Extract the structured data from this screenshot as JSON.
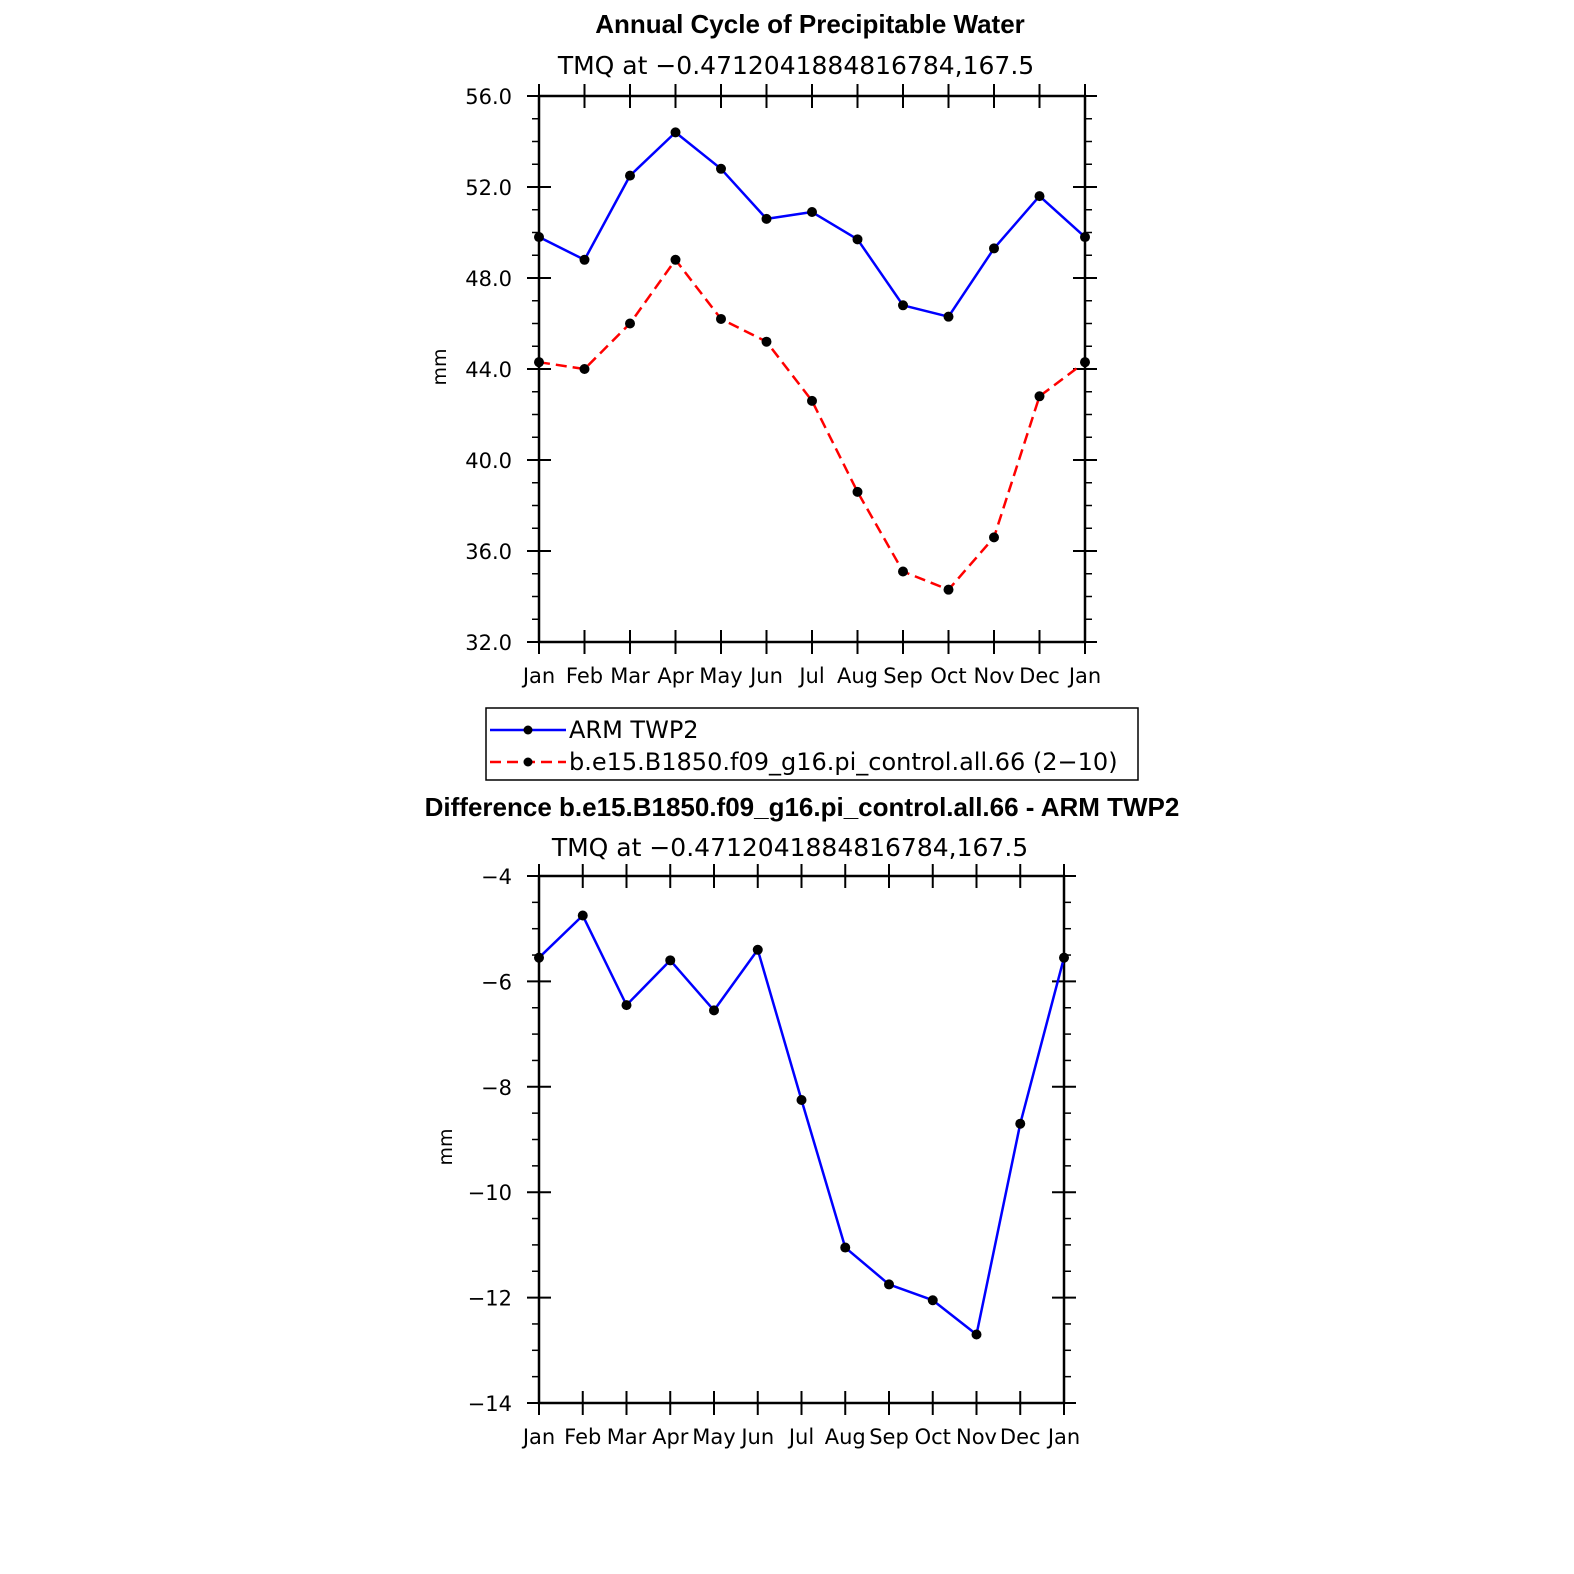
{
  "chart_data": [
    {
      "type": "line",
      "title": "Annual Cycle of Precipitable Water",
      "subtitle": "TMQ at −0.4712041884816784,167.5",
      "xlabel": "",
      "ylabel": "mm",
      "categories": [
        "Jan",
        "Feb",
        "Mar",
        "Apr",
        "May",
        "Jun",
        "Jul",
        "Aug",
        "Sep",
        "Oct",
        "Nov",
        "Dec",
        "Jan"
      ],
      "yticks": [
        "32.0",
        "36.0",
        "40.0",
        "44.0",
        "48.0",
        "52.0",
        "56.0"
      ],
      "ylim": [
        32,
        56
      ],
      "series": [
        {
          "name": "ARM TWP2",
          "color": "#0000ff",
          "dash": "solid",
          "values": [
            49.8,
            48.8,
            52.5,
            54.4,
            52.8,
            50.6,
            50.9,
            49.7,
            46.8,
            46.3,
            49.3,
            51.6,
            49.8
          ]
        },
        {
          "name": "b.e15.B1850.f09_g16.pi_control.all.66 (2−10)",
          "color": "#ff0000",
          "dash": "dashed",
          "values": [
            44.3,
            44.0,
            46.0,
            48.8,
            46.2,
            45.2,
            42.6,
            38.6,
            35.1,
            34.3,
            36.6,
            42.8,
            44.3
          ]
        }
      ],
      "legend": {
        "position": "bottom",
        "entries": [
          "ARM TWP2",
          "b.e15.B1850.f09_g16.pi_control.all.66 (2−10)"
        ]
      },
      "grid": false
    },
    {
      "type": "line",
      "title": "Difference b.e15.B1850.f09_g16.pi_control.all.66 - ARM TWP2",
      "subtitle": "TMQ at −0.4712041884816784,167.5",
      "xlabel": "",
      "ylabel": "mm",
      "categories": [
        "Jan",
        "Feb",
        "Mar",
        "Apr",
        "May",
        "Jun",
        "Jul",
        "Aug",
        "Sep",
        "Oct",
        "Nov",
        "Dec",
        "Jan"
      ],
      "yticks": [
        "−14",
        "−12",
        "−10",
        "−8",
        "−6",
        "−4"
      ],
      "ylim": [
        -14,
        -4
      ],
      "series": [
        {
          "name": "Difference",
          "color": "#0000ff",
          "dash": "solid",
          "values": [
            -5.55,
            -4.75,
            -6.45,
            -5.6,
            -6.55,
            -5.4,
            -8.25,
            -11.05,
            -11.75,
            -12.05,
            -12.7,
            -8.7,
            -5.55
          ]
        }
      ],
      "grid": false
    }
  ]
}
